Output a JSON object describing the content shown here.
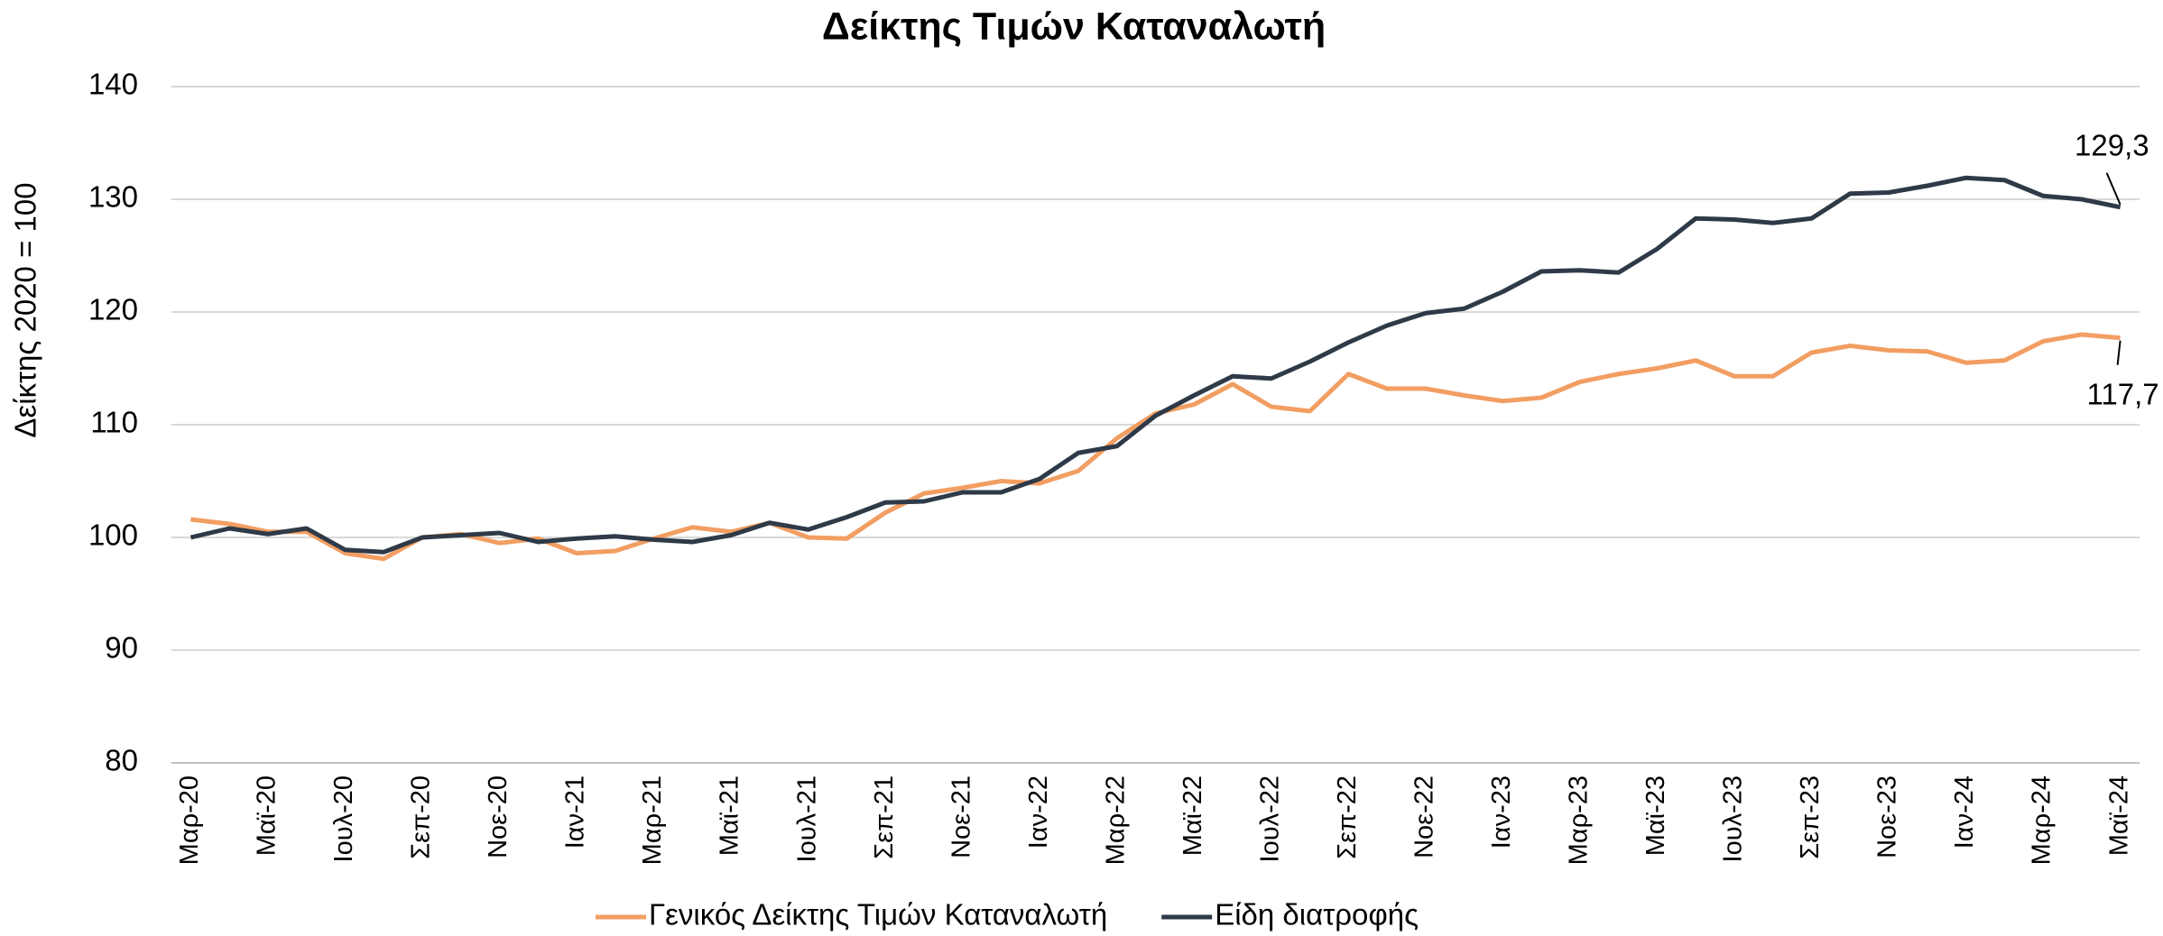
{
  "chart_data": {
    "type": "line",
    "title": "Δείκτης Τιμών Καταναλωτή",
    "y_label": "Δείκτης 2020 = 100",
    "categories": [
      "Μαρ-20",
      null,
      "Μαϊ-20",
      null,
      "Ιουλ-20",
      null,
      "Σεπ-20",
      null,
      "Νοε-20",
      null,
      "Ιαν-21",
      null,
      "Μαρ-21",
      null,
      "Μαϊ-21",
      null,
      "Ιουλ-21",
      null,
      "Σεπ-21",
      null,
      "Νοε-21",
      null,
      "Ιαν-22",
      null,
      "Μαρ-22",
      null,
      "Μαϊ-22",
      null,
      "Ιουλ-22",
      null,
      "Σεπ-22",
      null,
      "Νοε-22",
      null,
      "Ιαν-23",
      null,
      "Μαρ-23",
      null,
      "Μαϊ-23",
      null,
      "Ιουλ-23",
      null,
      "Σεπ-23",
      null,
      "Νοε-23",
      null,
      "Ιαν-24",
      null,
      "Μαρ-24",
      null,
      "Μαϊ-24"
    ],
    "series": [
      {
        "name": "Γενικός Δείκτης Τιμών Καταναλωτή",
        "color": "#f29e62",
        "values": [
          101.6,
          101.2,
          100.5,
          100.5,
          98.6,
          98.1,
          100.0,
          100.3,
          99.5,
          99.9,
          98.6,
          98.8,
          99.9,
          100.9,
          100.5,
          101.3,
          100.0,
          99.9,
          102.2,
          103.9,
          104.4,
          105.0,
          104.8,
          105.9,
          108.8,
          111.0,
          111.8,
          113.6,
          111.6,
          111.2,
          114.5,
          113.2,
          113.2,
          112.6,
          112.1,
          112.4,
          113.8,
          114.5,
          115.0,
          115.7,
          114.3,
          114.3,
          116.4,
          117.0,
          116.6,
          116.5,
          115.5,
          115.7,
          117.4,
          118.0,
          117.7
        ],
        "value_labels": [
          null,
          null,
          null,
          null,
          null,
          null,
          null,
          null,
          null,
          null,
          null,
          null,
          null,
          null,
          null,
          null,
          null,
          null,
          null,
          null,
          null,
          null,
          null,
          null,
          null,
          null,
          null,
          null,
          null,
          null,
          null,
          null,
          null,
          null,
          null,
          null,
          null,
          null,
          null,
          null,
          null,
          null,
          null,
          null,
          null,
          null,
          null,
          null,
          null,
          null,
          "117,7"
        ]
      },
      {
        "name": "Είδη διατροφής",
        "color": "#2e3a48",
        "values": [
          100.0,
          100.8,
          100.3,
          100.8,
          98.9,
          98.7,
          100.0,
          100.2,
          100.4,
          99.6,
          99.9,
          100.1,
          99.8,
          99.6,
          100.2,
          101.3,
          100.7,
          101.8,
          103.1,
          103.2,
          104.0,
          104.0,
          105.2,
          107.5,
          108.1,
          110.8,
          112.6,
          114.3,
          114.1,
          115.6,
          117.3,
          118.8,
          119.9,
          120.3,
          121.8,
          123.6,
          123.7,
          123.5,
          125.6,
          128.3,
          128.2,
          127.9,
          128.3,
          130.5,
          130.6,
          131.2,
          131.9,
          131.7,
          130.3,
          130.0,
          129.3
        ],
        "value_labels": [
          null,
          null,
          null,
          null,
          null,
          null,
          null,
          null,
          null,
          null,
          null,
          null,
          null,
          null,
          null,
          null,
          null,
          null,
          null,
          null,
          null,
          null,
          null,
          null,
          null,
          null,
          null,
          null,
          null,
          null,
          null,
          null,
          null,
          null,
          null,
          null,
          null,
          null,
          null,
          null,
          null,
          null,
          null,
          null,
          null,
          null,
          null,
          null,
          null,
          null,
          "129,3"
        ]
      }
    ],
    "ylim": [
      80,
      140
    ],
    "yticks": [
      80,
      90,
      100,
      110,
      120,
      130,
      140
    ],
    "grid": true,
    "legend": "bottom"
  }
}
